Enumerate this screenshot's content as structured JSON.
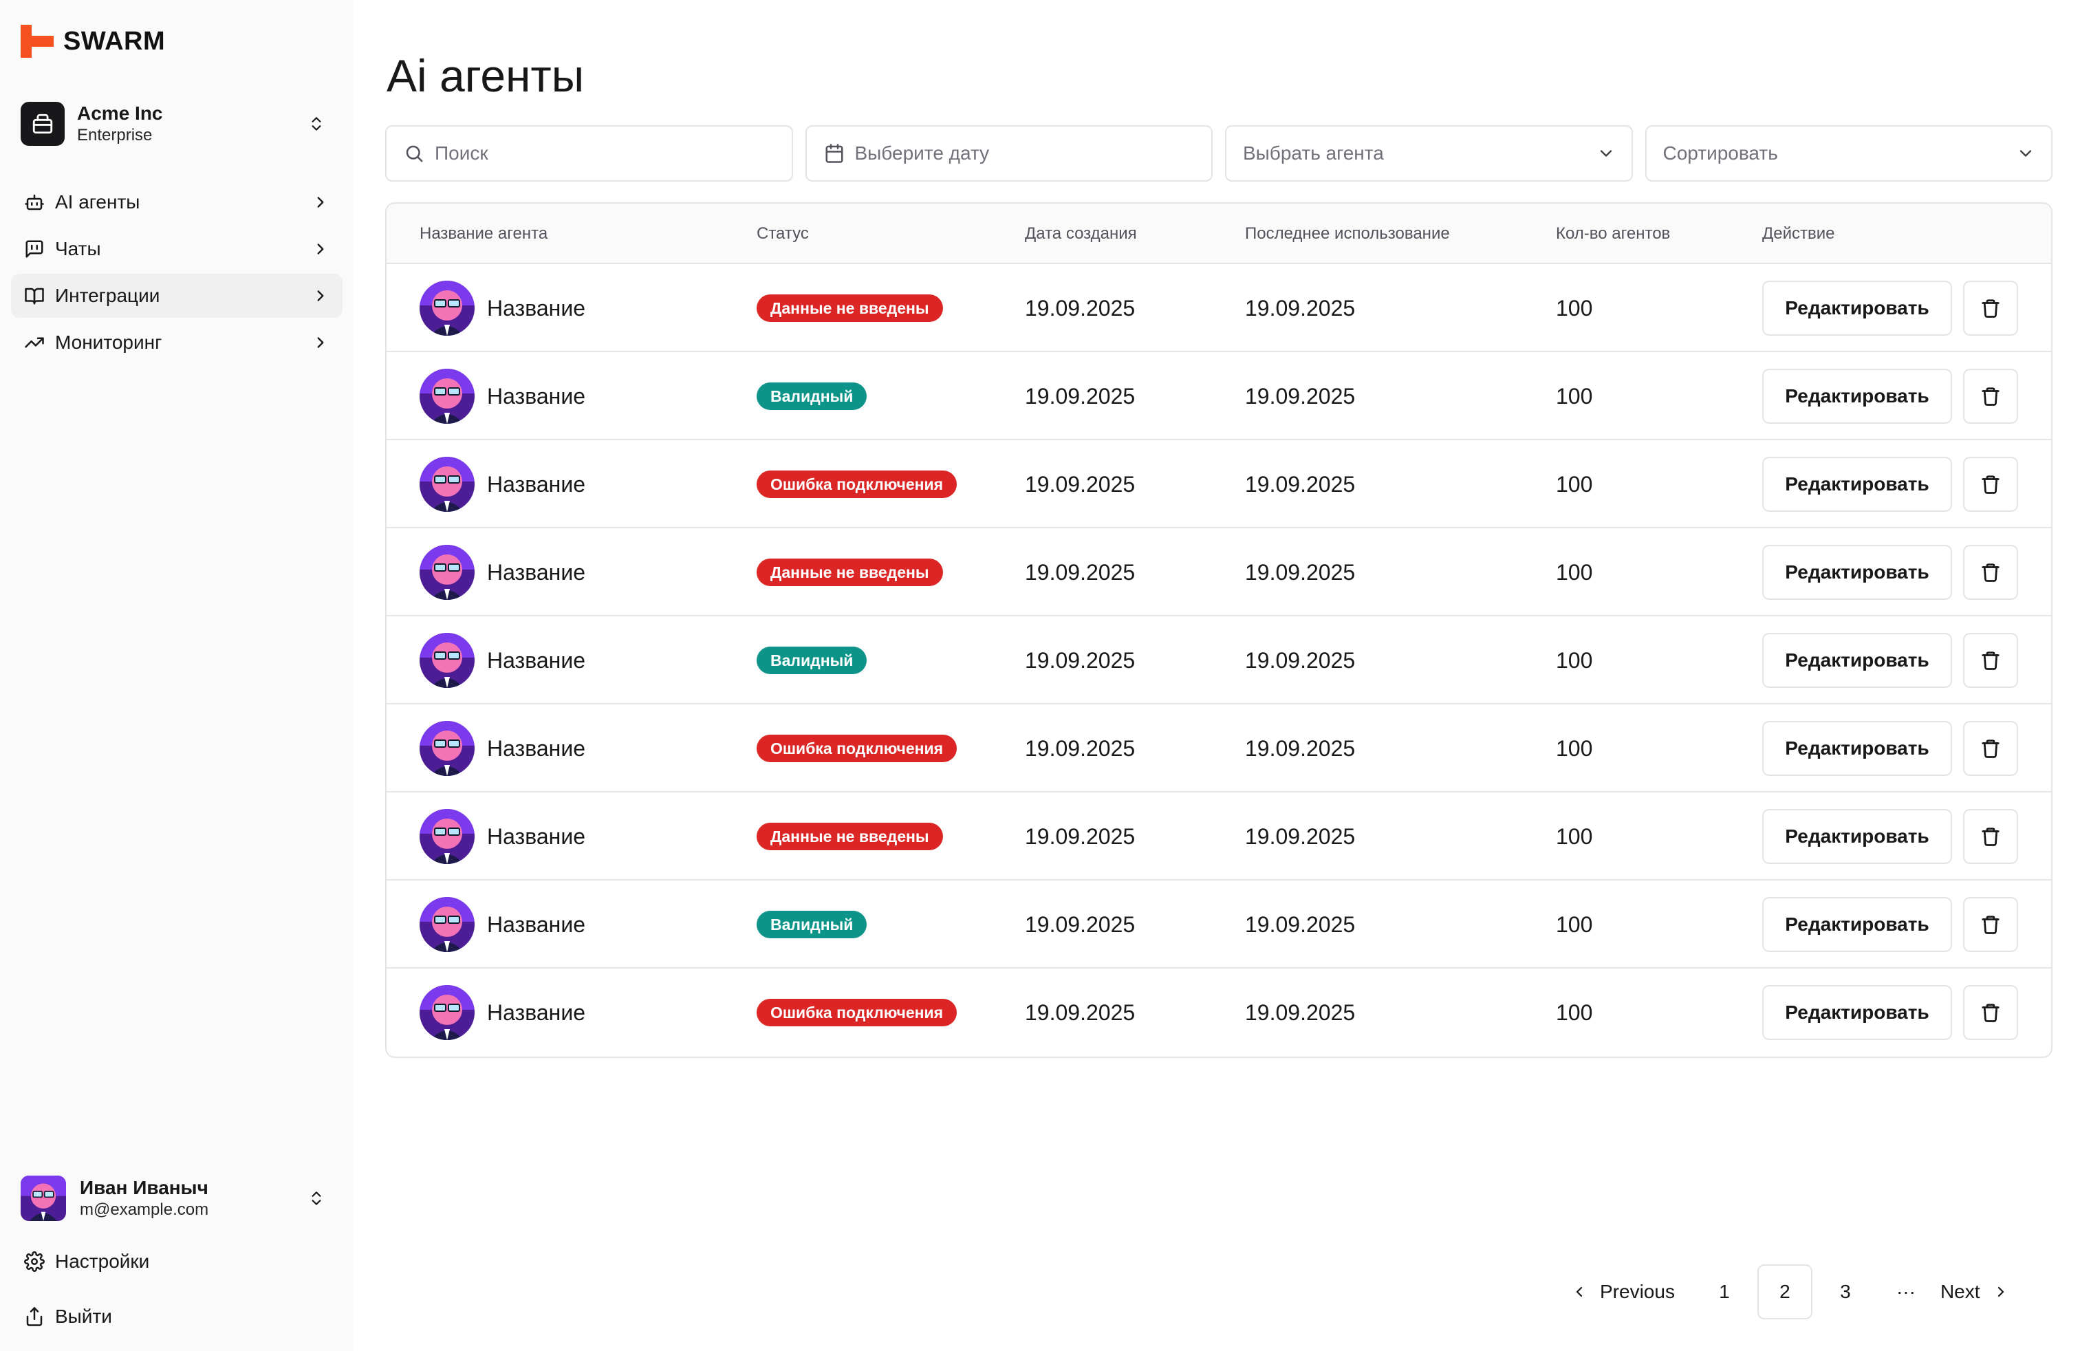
{
  "app": {
    "name": "SWARM",
    "brand_color": "#f4511e"
  },
  "org": {
    "name": "Acme Inc",
    "plan": "Enterprise"
  },
  "nav": [
    {
      "label": "AI агенты",
      "icon": "bot-icon"
    },
    {
      "label": "Чаты",
      "icon": "message-square-icon"
    },
    {
      "label": "Интеграции",
      "icon": "book-open-icon"
    },
    {
      "label": "Мониторинг",
      "icon": "trending-up-icon"
    }
  ],
  "user": {
    "name": "Иван Иваныч",
    "email": "m@example.com"
  },
  "bottom": {
    "settings": "Настройки",
    "logout": "Выйти"
  },
  "page": {
    "title": "Ai агенты"
  },
  "filters": {
    "search_placeholder": "Поиск",
    "date_placeholder": "Выберите дату",
    "agent_placeholder": "Выбрать агента",
    "sort_placeholder": "Сортировать"
  },
  "table": {
    "headers": [
      "Название агента",
      "Статус",
      "Дата создания",
      "Последнее использование",
      "Кол-во агентов",
      "Действие"
    ],
    "edit_label": "Редактировать",
    "status_colors": {
      "red": "#dc2626",
      "green": "#0d9488"
    },
    "rows": [
      {
        "name": "Название",
        "status": "Данные не введены",
        "status_tone": "red",
        "created": "19.09.2025",
        "last_used": "19.09.2025",
        "count": "100"
      },
      {
        "name": "Название",
        "status": "Валидный",
        "status_tone": "green",
        "created": "19.09.2025",
        "last_used": "19.09.2025",
        "count": "100"
      },
      {
        "name": "Название",
        "status": "Ошибка подключения",
        "status_tone": "red",
        "created": "19.09.2025",
        "last_used": "19.09.2025",
        "count": "100"
      },
      {
        "name": "Название",
        "status": "Данные не введены",
        "status_tone": "red",
        "created": "19.09.2025",
        "last_used": "19.09.2025",
        "count": "100"
      },
      {
        "name": "Название",
        "status": "Валидный",
        "status_tone": "green",
        "created": "19.09.2025",
        "last_used": "19.09.2025",
        "count": "100"
      },
      {
        "name": "Название",
        "status": "Ошибка подключения",
        "status_tone": "red",
        "created": "19.09.2025",
        "last_used": "19.09.2025",
        "count": "100"
      },
      {
        "name": "Название",
        "status": "Данные не введены",
        "status_tone": "red",
        "created": "19.09.2025",
        "last_used": "19.09.2025",
        "count": "100"
      },
      {
        "name": "Название",
        "status": "Валидный",
        "status_tone": "green",
        "created": "19.09.2025",
        "last_used": "19.09.2025",
        "count": "100"
      },
      {
        "name": "Название",
        "status": "Ошибка подключения",
        "status_tone": "red",
        "created": "19.09.2025",
        "last_used": "19.09.2025",
        "count": "100"
      }
    ]
  },
  "pagination": {
    "previous": "Previous",
    "next": "Next",
    "pages": [
      "1",
      "2",
      "3"
    ],
    "current": "2",
    "ellipsis": "···"
  }
}
